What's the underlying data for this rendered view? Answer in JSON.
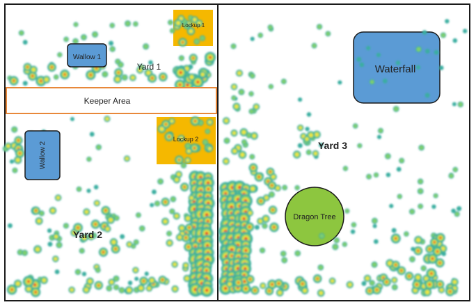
{
  "yards": {
    "yard1": "Yard 1",
    "yard2": "Yard 2",
    "yard3": "Yard 3"
  },
  "features": {
    "wallow1": "Wallow 1",
    "wallow2": "Wallow 2",
    "lockup1": "Lockup 1",
    "lockup2": "Lockup 2",
    "keeper_area": "Keeper Area",
    "waterfall": "Waterfall",
    "dragon_tree": "Dragon Tree"
  },
  "colors": {
    "outline": "#1a1a1a",
    "keeper_border": "#e8883a",
    "lockup_fill": "#f5b800",
    "wallow_fill": "#5b9bd5",
    "waterfall_fill": "#5b9bd5",
    "tree_fill": "#8dc63f",
    "heat_low": "#3aaea0",
    "heat_mid": "#7fd06a",
    "heat_high": "#f2e640",
    "heat_peak": "#e0532f"
  }
}
